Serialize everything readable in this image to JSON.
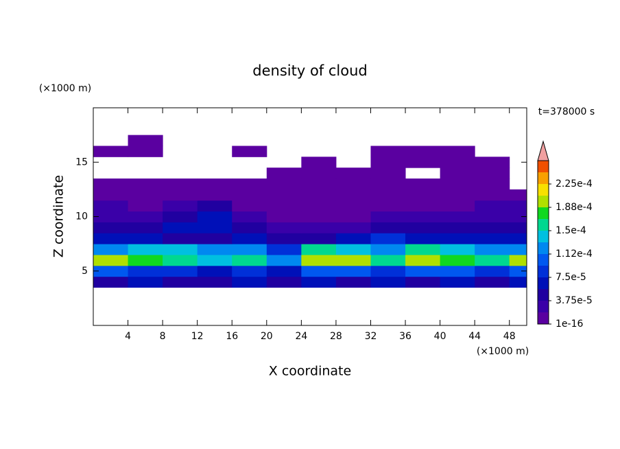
{
  "chart_data": {
    "type": "contour",
    "title": "density of cloud",
    "x_label": "X coordinate",
    "y_label": "Z coordinate",
    "x_unit": "(×1000 m)",
    "y_unit": "(×1000 m)",
    "annotation": "t=378000 s",
    "xlim": [
      0,
      50
    ],
    "ylim": [
      0,
      20
    ],
    "xticks": [
      4,
      8,
      12,
      16,
      20,
      24,
      28,
      32,
      36,
      40,
      44,
      48
    ],
    "yticks": [
      5,
      10,
      15
    ],
    "x_edges": [
      0,
      4,
      8,
      12,
      16,
      20,
      24,
      28,
      32,
      36,
      40,
      44,
      48,
      50
    ],
    "z_edges": [
      3.5,
      4.5,
      5.5,
      6.5,
      7.5,
      8.5,
      9.5,
      10.5,
      11.5,
      12.5,
      13.5,
      14.5,
      15.5,
      16.5,
      17.5
    ],
    "values": [
      [
        4.7e-05,
        6.5e-05,
        4.7e-05,
        4.7e-05,
        6.5e-05,
        4.7e-05,
        6.5e-05,
        4.7e-05,
        6.5e-05,
        4.7e-05,
        6.5e-05,
        4.7e-05,
        6.5e-05
      ],
      [
        0.000103,
        8.4e-05,
        8.4e-05,
        6.5e-05,
        8.4e-05,
        6.5e-05,
        0.000103,
        0.000103,
        8.4e-05,
        0.000103,
        0.000103,
        8.4e-05,
        0.000103
      ],
      [
        0.000197,
        0.000178,
        0.00016,
        0.00014,
        0.00016,
        0.00012,
        0.000197,
        0.000197,
        0.00016,
        0.000197,
        0.000178,
        0.00016,
        0.000197
      ],
      [
        0.00012,
        0.00014,
        0.00014,
        0.00012,
        0.00012,
        8.4e-05,
        0.00016,
        0.00014,
        0.00012,
        0.00016,
        0.00014,
        0.00012,
        0.00012
      ],
      [
        6.5e-05,
        6.5e-05,
        4.7e-05,
        4.7e-05,
        6.5e-05,
        4.7e-05,
        4.7e-05,
        6.5e-05,
        8.4e-05,
        6.5e-05,
        6.5e-05,
        6.5e-05,
        6.5e-05
      ],
      [
        4.7e-05,
        4.7e-05,
        6.5e-05,
        6.5e-05,
        4.7e-05,
        2.8e-05,
        2.8e-05,
        2.8e-05,
        4.7e-05,
        4.7e-05,
        4.7e-05,
        4.7e-05,
        4.7e-05
      ],
      [
        2.8e-05,
        2.8e-05,
        4.7e-05,
        6.5e-05,
        2.8e-05,
        1e-05,
        1e-05,
        1e-05,
        2.8e-05,
        2.8e-05,
        2.8e-05,
        2.8e-05,
        2.8e-05
      ],
      [
        2.8e-05,
        1e-05,
        2.8e-05,
        4.7e-05,
        1e-05,
        1e-05,
        1e-05,
        1e-05,
        1e-05,
        1e-05,
        1e-05,
        2.8e-05,
        2.8e-05
      ],
      [
        1e-05,
        1e-05,
        1e-05,
        1e-05,
        1e-05,
        1e-05,
        1e-05,
        1e-05,
        1e-05,
        1e-05,
        1e-05,
        1e-05,
        1e-05
      ],
      [
        1e-05,
        1e-05,
        1e-05,
        1e-05,
        1e-05,
        1e-05,
        1e-05,
        1e-05,
        1e-05,
        1e-05,
        1e-05,
        1e-05,
        null
      ],
      [
        null,
        null,
        null,
        null,
        null,
        1e-05,
        1e-05,
        1e-05,
        1e-05,
        null,
        1e-05,
        1e-05,
        null
      ],
      [
        null,
        null,
        null,
        null,
        null,
        null,
        1e-05,
        null,
        1e-05,
        1e-05,
        1e-05,
        1e-05,
        null
      ],
      [
        1e-05,
        1e-05,
        null,
        null,
        1e-05,
        null,
        null,
        null,
        1e-05,
        1e-05,
        1e-05,
        null,
        null
      ],
      [
        null,
        1e-05,
        null,
        null,
        null,
        null,
        null,
        null,
        null,
        null,
        null,
        null,
        null
      ]
    ],
    "levels": [
      1e-16,
      1.875e-05,
      3.75e-05,
      5.625e-05,
      7.5e-05,
      9.375e-05,
      0.0001125,
      0.00013125,
      0.00015,
      0.00016875,
      0.0001875,
      0.00020625,
      0.000225,
      0.00024375,
      0.0002625
    ],
    "colors": [
      "#5a00a0",
      "#3a00a8",
      "#2000a0",
      "#0010b8",
      "#0030d8",
      "#0058f0",
      "#0088f0",
      "#00c0e0",
      "#00d890",
      "#10d820",
      "#b0e000",
      "#f8e000",
      "#f8a000",
      "#f05000"
    ],
    "extend_color": "#f0a0a0",
    "colorbar_ticks": [
      {
        "value": 1e-16,
        "label": "1e-16"
      },
      {
        "value": 3.75e-05,
        "label": "3.75e-5"
      },
      {
        "value": 7.5e-05,
        "label": "7.5e-5"
      },
      {
        "value": 0.0001125,
        "label": "1.12e-4"
      },
      {
        "value": 0.00015,
        "label": "1.5e-4"
      },
      {
        "value": 0.0001875,
        "label": "1.88e-4"
      },
      {
        "value": 0.000225,
        "label": "2.25e-4"
      }
    ]
  }
}
